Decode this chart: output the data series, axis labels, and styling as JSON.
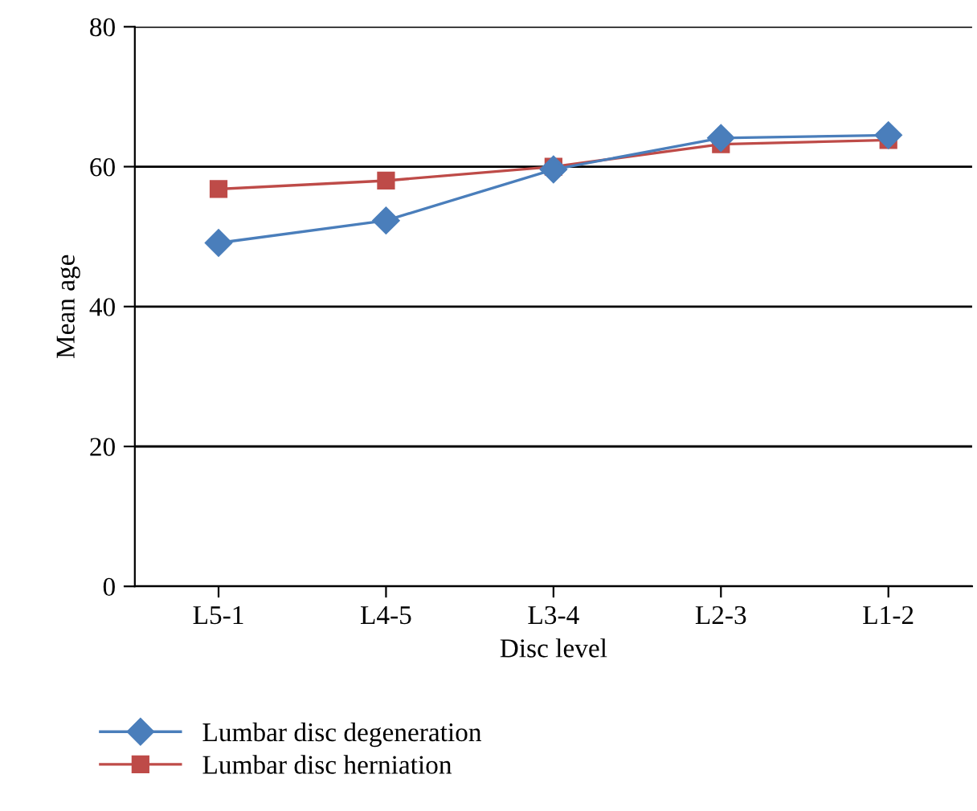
{
  "chart_data": {
    "type": "line",
    "xlabel": "Disc level",
    "ylabel": "Mean age",
    "categories": [
      "L5-1",
      "L4-5",
      "L3-4",
      "L2-3",
      "L1-2"
    ],
    "series": [
      {
        "name": "Lumbar disc degeneration",
        "color": "#4a7ebb",
        "marker": "diamond",
        "values": [
          49.1,
          52.3,
          59.6,
          64.1,
          64.5
        ]
      },
      {
        "name": "Lumbar disc herniation",
        "color": "#be4b48",
        "marker": "square",
        "values": [
          56.8,
          58,
          60,
          63.2,
          63.8
        ]
      }
    ],
    "ylim": [
      0,
      80
    ],
    "yticks": [
      0,
      20,
      40,
      60,
      80
    ],
    "grid": "y",
    "legend": "bottom",
    "line_style": "solid"
  }
}
